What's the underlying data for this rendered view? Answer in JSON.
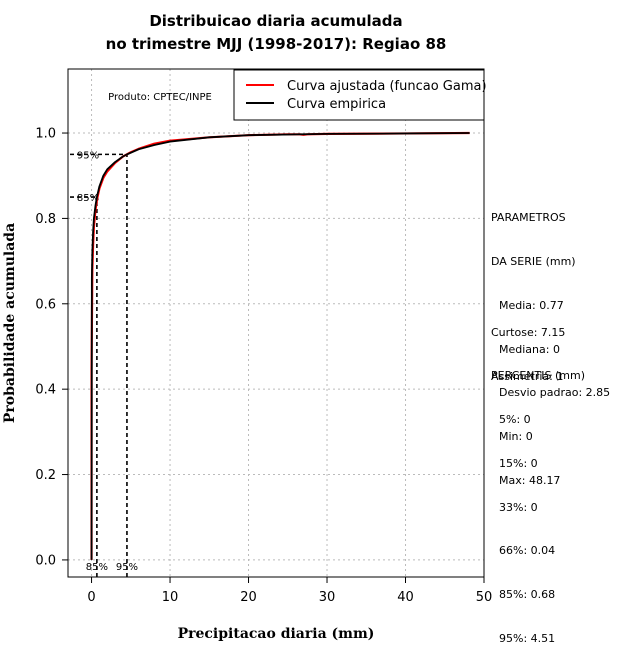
{
  "title_line1": "Distribuicao diaria acumulada",
  "title_line2": "no trimestre MJJ (1998-2017): Regiao 88",
  "colors": {
    "fitted": "#ff0000",
    "empirical": "#000000",
    "grid": "#bbbbbb"
  },
  "chart_data": {
    "type": "line",
    "xlabel": "Precipitacao diaria (mm)",
    "ylabel": "Probabilidade acumulada",
    "xlim": [
      -3,
      50
    ],
    "ylim": [
      -0.04,
      1.15
    ],
    "xticks": [
      0,
      10,
      20,
      30,
      40,
      50
    ],
    "yticks": [
      0.0,
      0.2,
      0.4,
      0.6,
      0.8,
      1.0
    ],
    "xtick_labels": [
      "0",
      "10",
      "20",
      "30",
      "40",
      "50"
    ],
    "ytick_labels": [
      "0.0",
      "0.2",
      "0.4",
      "0.6",
      "0.8",
      "1.0"
    ],
    "grid": true,
    "producer_label": "Produto: CPTEC/INPE",
    "legend": {
      "placement": "top-right",
      "entries": [
        "Curva ajustada (funcao Gama)",
        "Curva empirica"
      ]
    },
    "series": [
      {
        "name": "Curva ajustada (funcao Gama)",
        "color": "#ff0000",
        "x": [
          0.0,
          0.0,
          0.1,
          0.2,
          0.3,
          0.5,
          0.7,
          1.0,
          1.5,
          2.0,
          3.0,
          4.0,
          5.0,
          6.0,
          8.0,
          10.0,
          15.0,
          20.0,
          25.0,
          26.5,
          27.0,
          27.5,
          30.0,
          40.0,
          48.17
        ],
        "y": [
          0.0,
          0.45,
          0.68,
          0.74,
          0.78,
          0.82,
          0.845,
          0.87,
          0.895,
          0.91,
          0.93,
          0.945,
          0.955,
          0.963,
          0.975,
          0.982,
          0.99,
          0.995,
          0.997,
          0.997,
          0.996,
          0.997,
          0.998,
          0.999,
          1.0
        ]
      },
      {
        "name": "Curva empirica",
        "color": "#000000",
        "x": [
          0.0,
          0.04,
          0.1,
          0.2,
          0.3,
          0.5,
          0.68,
          1.0,
          1.5,
          2.0,
          3.0,
          4.0,
          4.51,
          6.0,
          8.0,
          10.0,
          15.0,
          20.0,
          30.0,
          40.0,
          48.17
        ],
        "y": [
          0.0,
          0.66,
          0.72,
          0.77,
          0.8,
          0.83,
          0.85,
          0.875,
          0.9,
          0.915,
          0.932,
          0.945,
          0.95,
          0.962,
          0.972,
          0.98,
          0.99,
          0.995,
          0.998,
          0.999,
          1.0
        ]
      }
    ],
    "percentile_markers": [
      {
        "label": "85%",
        "x": 0.68,
        "y": 0.85
      },
      {
        "label": "95%",
        "x": 4.51,
        "y": 0.95
      }
    ]
  },
  "stats": {
    "params_header1": "PARAMETROS",
    "params_header2": "DA SERIE (mm)",
    "media": "Media: 0.77",
    "mediana": "Mediana: 0",
    "desvio": "Desvio padrao: 2.85",
    "min": "Min: 0",
    "max": "Max: 48.17",
    "curtose": "Curtose: 7.15",
    "assimetria": "Assimetria: 1",
    "percentis_header": "PERCENTIS (mm)",
    "p5": "5%: 0",
    "p15": "15%: 0",
    "p33": "33%: 0",
    "p66": "66%: 0.04",
    "p85": "85%: 0.68",
    "p95": "95%: 4.51"
  }
}
